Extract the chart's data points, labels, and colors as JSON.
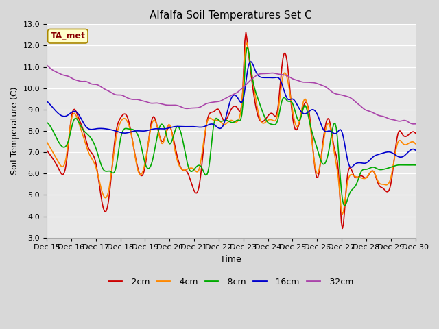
{
  "title": "Alfalfa Soil Temperatures Set C",
  "xlabel": "Time",
  "ylabel": "Soil Temperature (C)",
  "ylim": [
    3.0,
    13.0
  ],
  "yticks": [
    3.0,
    4.0,
    5.0,
    6.0,
    7.0,
    8.0,
    9.0,
    10.0,
    11.0,
    12.0,
    13.0
  ],
  "xtick_labels": [
    "Dec 15",
    "Dec 16",
    "Dec 17",
    "Dec 18",
    "Dec 19",
    "Dec 20",
    "Dec 21",
    "Dec 22",
    "Dec 23",
    "Dec 24",
    "Dec 25",
    "Dec 26",
    "Dec 27",
    "Dec 28",
    "Dec 29",
    "Dec 30"
  ],
  "legend_labels": [
    "-2cm",
    "-4cm",
    "-8cm",
    "-16cm",
    "-32cm"
  ],
  "colors": {
    "-2cm": "#cc0000",
    "-4cm": "#ff8800",
    "-8cm": "#00aa00",
    "-16cm": "#0000cc",
    "-32cm": "#aa44aa"
  },
  "annotation_text": "TA_met",
  "annotation_color": "#880000",
  "annotation_bg": "#ffffcc",
  "annotation_edge": "#aa8800",
  "fig_bg": "#d8d8d8",
  "plot_bg": "#e8e8e8",
  "title_fontsize": 11,
  "axis_fontsize": 9,
  "tick_fontsize": 8,
  "legend_fontsize": 9
}
